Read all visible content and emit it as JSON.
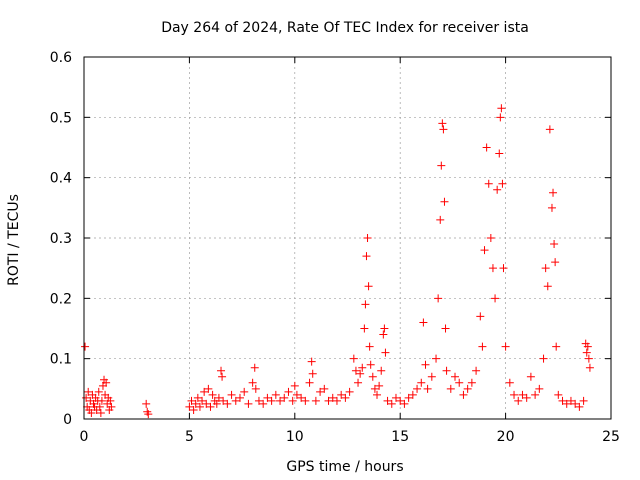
{
  "chart_data": {
    "type": "scatter",
    "title": "Day 264 of 2024, Rate Of TEC Index for receiver ista",
    "xlabel": "GPS time / hours",
    "ylabel": "ROTI / TECUs",
    "xlim": [
      0,
      25
    ],
    "ylim": [
      0,
      0.6
    ],
    "xticks": [
      0,
      5,
      10,
      15,
      20,
      25
    ],
    "xtick_labels": [
      "0",
      "5",
      "10",
      "15",
      "20",
      "25"
    ],
    "yticks": [
      0,
      0.1,
      0.2,
      0.3,
      0.4,
      0.5,
      0.6
    ],
    "ytick_labels": [
      "0",
      "0.1",
      "0.2",
      "0.3",
      "0.4",
      "0.5",
      "0.6"
    ],
    "grid": true,
    "marker": "+",
    "color": "#ff0000",
    "series": [
      {
        "name": "ROTI",
        "points": [
          [
            0.05,
            0.12
          ],
          [
            0.1,
            0.035
          ],
          [
            0.15,
            0.02
          ],
          [
            0.2,
            0.045
          ],
          [
            0.25,
            0.015
          ],
          [
            0.3,
            0.03
          ],
          [
            0.35,
            0.01
          ],
          [
            0.4,
            0.04
          ],
          [
            0.45,
            0.025
          ],
          [
            0.5,
            0.02
          ],
          [
            0.55,
            0.035
          ],
          [
            0.6,
            0.015
          ],
          [
            0.65,
            0.03
          ],
          [
            0.7,
            0.045
          ],
          [
            0.75,
            0.02
          ],
          [
            0.8,
            0.01
          ],
          [
            0.85,
            0.03
          ],
          [
            0.9,
            0.055
          ],
          [
            0.95,
            0.065
          ],
          [
            1.0,
            0.04
          ],
          [
            1.05,
            0.06
          ],
          [
            1.1,
            0.025
          ],
          [
            1.15,
            0.035
          ],
          [
            1.2,
            0.015
          ],
          [
            1.25,
            0.03
          ],
          [
            1.3,
            0.02
          ],
          [
            2.95,
            0.025
          ],
          [
            3.0,
            0.012
          ],
          [
            3.05,
            0.008
          ],
          [
            5.0,
            0.02
          ],
          [
            5.1,
            0.03
          ],
          [
            5.2,
            0.015
          ],
          [
            5.3,
            0.025
          ],
          [
            5.4,
            0.035
          ],
          [
            5.5,
            0.02
          ],
          [
            5.6,
            0.03
          ],
          [
            5.7,
            0.045
          ],
          [
            5.8,
            0.025
          ],
          [
            5.9,
            0.05
          ],
          [
            6.0,
            0.02
          ],
          [
            6.1,
            0.04
          ],
          [
            6.2,
            0.03
          ],
          [
            6.3,
            0.025
          ],
          [
            6.4,
            0.035
          ],
          [
            6.5,
            0.08
          ],
          [
            6.55,
            0.07
          ],
          [
            6.6,
            0.03
          ],
          [
            6.8,
            0.025
          ],
          [
            7.0,
            0.04
          ],
          [
            7.2,
            0.03
          ],
          [
            7.4,
            0.035
          ],
          [
            7.6,
            0.045
          ],
          [
            7.8,
            0.025
          ],
          [
            8.0,
            0.06
          ],
          [
            8.1,
            0.085
          ],
          [
            8.15,
            0.05
          ],
          [
            8.3,
            0.03
          ],
          [
            8.5,
            0.025
          ],
          [
            8.7,
            0.035
          ],
          [
            8.9,
            0.03
          ],
          [
            9.1,
            0.04
          ],
          [
            9.3,
            0.03
          ],
          [
            9.5,
            0.035
          ],
          [
            9.7,
            0.045
          ],
          [
            9.9,
            0.03
          ],
          [
            10.0,
            0.055
          ],
          [
            10.1,
            0.04
          ],
          [
            10.3,
            0.035
          ],
          [
            10.5,
            0.03
          ],
          [
            10.7,
            0.06
          ],
          [
            10.8,
            0.095
          ],
          [
            10.85,
            0.075
          ],
          [
            11.0,
            0.03
          ],
          [
            11.2,
            0.045
          ],
          [
            11.4,
            0.05
          ],
          [
            11.6,
            0.03
          ],
          [
            11.8,
            0.035
          ],
          [
            12.0,
            0.03
          ],
          [
            12.2,
            0.04
          ],
          [
            12.4,
            0.035
          ],
          [
            12.6,
            0.045
          ],
          [
            12.8,
            0.1
          ],
          [
            12.9,
            0.08
          ],
          [
            13.0,
            0.06
          ],
          [
            13.1,
            0.075
          ],
          [
            13.2,
            0.085
          ],
          [
            13.3,
            0.15
          ],
          [
            13.35,
            0.19
          ],
          [
            13.4,
            0.27
          ],
          [
            13.45,
            0.3
          ],
          [
            13.5,
            0.22
          ],
          [
            13.55,
            0.12
          ],
          [
            13.6,
            0.09
          ],
          [
            13.7,
            0.07
          ],
          [
            13.8,
            0.05
          ],
          [
            13.9,
            0.04
          ],
          [
            14.0,
            0.055
          ],
          [
            14.1,
            0.08
          ],
          [
            14.2,
            0.14
          ],
          [
            14.25,
            0.15
          ],
          [
            14.3,
            0.11
          ],
          [
            14.4,
            0.03
          ],
          [
            14.6,
            0.025
          ],
          [
            14.8,
            0.035
          ],
          [
            15.0,
            0.03
          ],
          [
            15.2,
            0.025
          ],
          [
            15.4,
            0.035
          ],
          [
            15.6,
            0.04
          ],
          [
            15.8,
            0.05
          ],
          [
            16.0,
            0.06
          ],
          [
            16.1,
            0.16
          ],
          [
            16.2,
            0.09
          ],
          [
            16.3,
            0.05
          ],
          [
            16.5,
            0.07
          ],
          [
            16.7,
            0.1
          ],
          [
            16.8,
            0.2
          ],
          [
            16.9,
            0.33
          ],
          [
            16.95,
            0.42
          ],
          [
            17.0,
            0.49
          ],
          [
            17.05,
            0.48
          ],
          [
            17.1,
            0.36
          ],
          [
            17.15,
            0.15
          ],
          [
            17.2,
            0.08
          ],
          [
            17.4,
            0.05
          ],
          [
            17.6,
            0.07
          ],
          [
            17.8,
            0.06
          ],
          [
            18.0,
            0.04
          ],
          [
            18.2,
            0.05
          ],
          [
            18.4,
            0.06
          ],
          [
            18.6,
            0.08
          ],
          [
            18.8,
            0.17
          ],
          [
            18.9,
            0.12
          ],
          [
            19.0,
            0.28
          ],
          [
            19.1,
            0.45
          ],
          [
            19.2,
            0.39
          ],
          [
            19.3,
            0.3
          ],
          [
            19.4,
            0.25
          ],
          [
            19.5,
            0.2
          ],
          [
            19.6,
            0.38
          ],
          [
            19.7,
            0.44
          ],
          [
            19.75,
            0.5
          ],
          [
            19.8,
            0.515
          ],
          [
            19.85,
            0.39
          ],
          [
            19.9,
            0.25
          ],
          [
            20.0,
            0.12
          ],
          [
            20.2,
            0.06
          ],
          [
            20.4,
            0.04
          ],
          [
            20.6,
            0.03
          ],
          [
            20.8,
            0.04
          ],
          [
            21.0,
            0.035
          ],
          [
            21.2,
            0.07
          ],
          [
            21.4,
            0.04
          ],
          [
            21.6,
            0.05
          ],
          [
            21.8,
            0.1
          ],
          [
            21.9,
            0.25
          ],
          [
            22.0,
            0.22
          ],
          [
            22.1,
            0.48
          ],
          [
            22.2,
            0.35
          ],
          [
            22.25,
            0.375
          ],
          [
            22.3,
            0.29
          ],
          [
            22.35,
            0.26
          ],
          [
            22.4,
            0.12
          ],
          [
            22.5,
            0.04
          ],
          [
            22.7,
            0.03
          ],
          [
            22.9,
            0.025
          ],
          [
            23.1,
            0.03
          ],
          [
            23.3,
            0.025
          ],
          [
            23.5,
            0.02
          ],
          [
            23.7,
            0.03
          ],
          [
            23.8,
            0.125
          ],
          [
            23.85,
            0.11
          ],
          [
            23.9,
            0.12
          ],
          [
            23.95,
            0.1
          ],
          [
            24.0,
            0.085
          ]
        ]
      }
    ]
  }
}
